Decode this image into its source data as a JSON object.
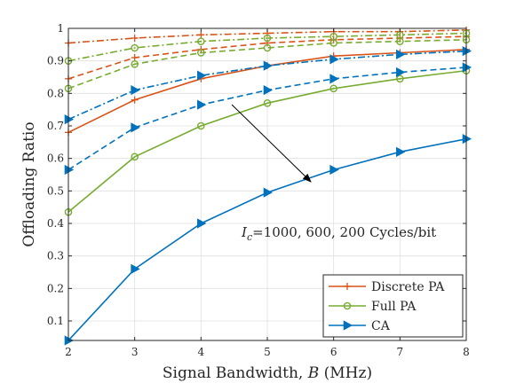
{
  "chart_data": {
    "type": "line",
    "xlabel": "Signal Bandwidth, B (MHz)",
    "ylabel": "Offloading Ratio",
    "xlim": [
      2,
      8
    ],
    "ylim": [
      0.04,
      1
    ],
    "grid": true,
    "x": [
      2,
      3,
      4,
      5,
      6,
      7,
      8
    ],
    "x_ticks": [
      "2",
      "3",
      "4",
      "5",
      "6",
      "7",
      "8"
    ],
    "y_ticks": [
      0.1,
      0.2,
      0.3,
      0.4,
      0.5,
      0.6,
      0.7,
      0.8,
      0.9,
      1
    ],
    "y_tick_labels": [
      "0.1",
      "0.2",
      "0.3",
      "0.4",
      "0.5",
      "0.6",
      "0.7",
      "0.8",
      "0.9",
      "1"
    ],
    "annotation": "I_c=1000, 600, 200 Cycles/bit",
    "annotation_parts": {
      "symbol": "I",
      "subscript": "c",
      "text": "=1000, 600, 200 Cycles/bit"
    },
    "legend_position": "bottom-right",
    "legend": [
      "Discrete PA",
      "Full PA",
      "CA"
    ],
    "colors": {
      "Discrete PA": "#d95319",
      "Full PA": "#77ac30",
      "CA": "#0072bd"
    },
    "series": [
      {
        "name": "Discrete PA",
        "style": "solid",
        "marker": "plus",
        "color": "#d95319",
        "values": [
          0.68,
          0.78,
          0.845,
          0.885,
          0.915,
          0.925,
          0.935
        ]
      },
      {
        "name": "Discrete PA",
        "style": "dashed",
        "marker": "plus",
        "color": "#d95319",
        "values": [
          0.845,
          0.91,
          0.935,
          0.955,
          0.965,
          0.97,
          0.975
        ]
      },
      {
        "name": "Discrete PA",
        "style": "dashdot",
        "marker": "plus",
        "color": "#d95319",
        "values": [
          0.955,
          0.97,
          0.98,
          0.985,
          0.99,
          0.99,
          0.995
        ]
      },
      {
        "name": "Full PA",
        "style": "solid",
        "marker": "circle",
        "color": "#77ac30",
        "values": [
          0.435,
          0.605,
          0.7,
          0.77,
          0.815,
          0.845,
          0.87
        ]
      },
      {
        "name": "Full PA",
        "style": "dashed",
        "marker": "circle",
        "color": "#77ac30",
        "values": [
          0.815,
          0.89,
          0.925,
          0.94,
          0.955,
          0.96,
          0.965
        ]
      },
      {
        "name": "Full PA",
        "style": "dashdot",
        "marker": "circle",
        "color": "#77ac30",
        "values": [
          0.9,
          0.94,
          0.96,
          0.97,
          0.975,
          0.98,
          0.985
        ]
      },
      {
        "name": "CA",
        "style": "solid",
        "marker": "triangle",
        "color": "#0072bd",
        "values": [
          0.04,
          0.26,
          0.4,
          0.495,
          0.565,
          0.62,
          0.66
        ]
      },
      {
        "name": "CA",
        "style": "dashed",
        "marker": "triangle",
        "color": "#0072bd",
        "values": [
          0.565,
          0.695,
          0.765,
          0.81,
          0.845,
          0.865,
          0.88
        ]
      },
      {
        "name": "CA",
        "style": "dashdot",
        "marker": "triangle",
        "color": "#0072bd",
        "values": [
          0.72,
          0.81,
          0.855,
          0.885,
          0.905,
          0.92,
          0.93
        ]
      }
    ]
  }
}
